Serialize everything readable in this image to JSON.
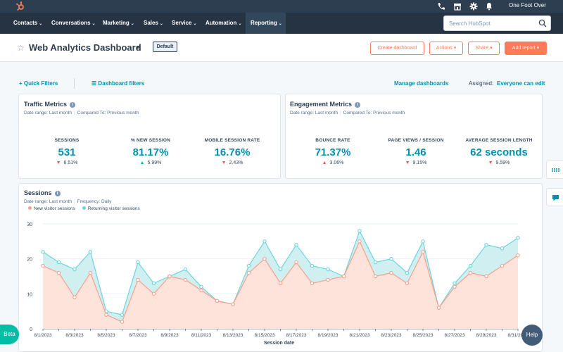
{
  "topbar": {
    "account_name": "One Foot Over",
    "icons": [
      "sprocket-logo-icon",
      "phone-icon",
      "marketplace-icon",
      "settings-gear-icon",
      "notification-bell-icon"
    ]
  },
  "nav": {
    "items": [
      {
        "label": "Contacts"
      },
      {
        "label": "Conversations"
      },
      {
        "label": "Marketing"
      },
      {
        "label": "Sales"
      },
      {
        "label": "Service"
      },
      {
        "label": "Automation"
      },
      {
        "label": "Reporting"
      }
    ],
    "active": "Reporting",
    "search_placeholder": "Search HubSpot"
  },
  "header": {
    "title": "Web Analytics Dashboard",
    "default_badge": "Default",
    "buttons": {
      "create": "Create dashboard",
      "actions": "Actions",
      "share": "Share",
      "add_report": "Add report"
    }
  },
  "filters": {
    "quick": "Quick Filters",
    "dashboard": "Dashboard filters",
    "manage": "Manage dashboards",
    "assigned_label": "Assigned:",
    "assigned_value": "Everyone can edit"
  },
  "traffic": {
    "title": "Traffic Metrics",
    "date_range": "Date range: Last month",
    "compared": "Compared To: Previous month",
    "metrics": [
      {
        "label": "SESSIONS",
        "value": "531",
        "change": "6.51%",
        "direction": "down"
      },
      {
        "label": "% NEW SESSION",
        "value": "81.17%",
        "change": "5.99%",
        "direction": "up"
      },
      {
        "label": "MOBILE SESSION RATE",
        "value": "16.76%",
        "change": "2.43%",
        "direction": "down"
      }
    ]
  },
  "engagement": {
    "title": "Engagement Metrics",
    "date_range": "Date range: Last month",
    "compared": "Compared To: Previous month",
    "metrics": [
      {
        "label": "BOUNCE RATE",
        "value": "71.37%",
        "change": "3.06%",
        "direction": "up"
      },
      {
        "label": "PAGE VIEWS / SESSION",
        "value": "1.46",
        "change": "9.15%",
        "direction": "down"
      },
      {
        "label": "AVERAGE SESSION LENGTH",
        "value": "62 seconds",
        "change": "9.59%",
        "direction": "down"
      }
    ]
  },
  "sessions": {
    "title": "Sessions",
    "date_range": "Date range: Last month",
    "frequency": "Frequency: Daily"
  },
  "chart_data": {
    "type": "area",
    "stacked": false,
    "xlabel": "Session date",
    "ylabel": "",
    "ylim": [
      0,
      30
    ],
    "yticks": [
      0,
      10,
      20,
      30
    ],
    "grid": true,
    "legend_position": "top-left",
    "x": [
      "8/1/2023",
      "8/2/2023",
      "8/3/2023",
      "8/4/2023",
      "8/5/2023",
      "8/6/2023",
      "8/7/2023",
      "8/8/2023",
      "8/9/2023",
      "8/10/2023",
      "8/11/2023",
      "8/12/2023",
      "8/13/2023",
      "8/14/2023",
      "8/15/2023",
      "8/16/2023",
      "8/17/2023",
      "8/18/2023",
      "8/19/2023",
      "8/20/2023",
      "8/21/2023",
      "8/22/2023",
      "8/23/2023",
      "8/24/2023",
      "8/25/2023",
      "8/26/2023",
      "8/27/2023",
      "8/28/2023",
      "8/29/2023",
      "8/30/2023",
      "8/31/2023"
    ],
    "x_tick_labels": [
      "8/1/2023",
      "8/3/2023",
      "8/5/2023",
      "8/7/2023",
      "8/9/2023",
      "8/11/2023",
      "8/13/2023",
      "8/15/2023",
      "8/17/2023",
      "8/19/2023",
      "8/21/2023",
      "8/23/2023",
      "8/25/2023",
      "8/27/2023",
      "8/29/2023",
      "8/31/2023"
    ],
    "series": [
      {
        "name": "New visitor sessions",
        "color": "#f8a08e",
        "fill": "#fde3da",
        "values": [
          18,
          16,
          9,
          16,
          4,
          2,
          14,
          10,
          15,
          14,
          11,
          8,
          7,
          16,
          20,
          13,
          19,
          13,
          14,
          15,
          25,
          15,
          16,
          13,
          22,
          6,
          12,
          16,
          15,
          18,
          21
        ]
      },
      {
        "name": "Returning visitor sessions",
        "color": "#6fd3dc",
        "fill": "#cfeff1",
        "values": [
          22,
          19,
          17,
          22,
          5,
          4,
          19,
          13,
          15,
          17,
          12,
          8,
          7,
          18,
          25,
          17,
          24,
          18,
          17,
          15,
          28,
          19,
          20,
          16,
          25,
          6,
          13,
          18,
          24,
          23,
          26
        ]
      }
    ]
  },
  "misc": {
    "beta": "Beta",
    "help": "Help"
  }
}
